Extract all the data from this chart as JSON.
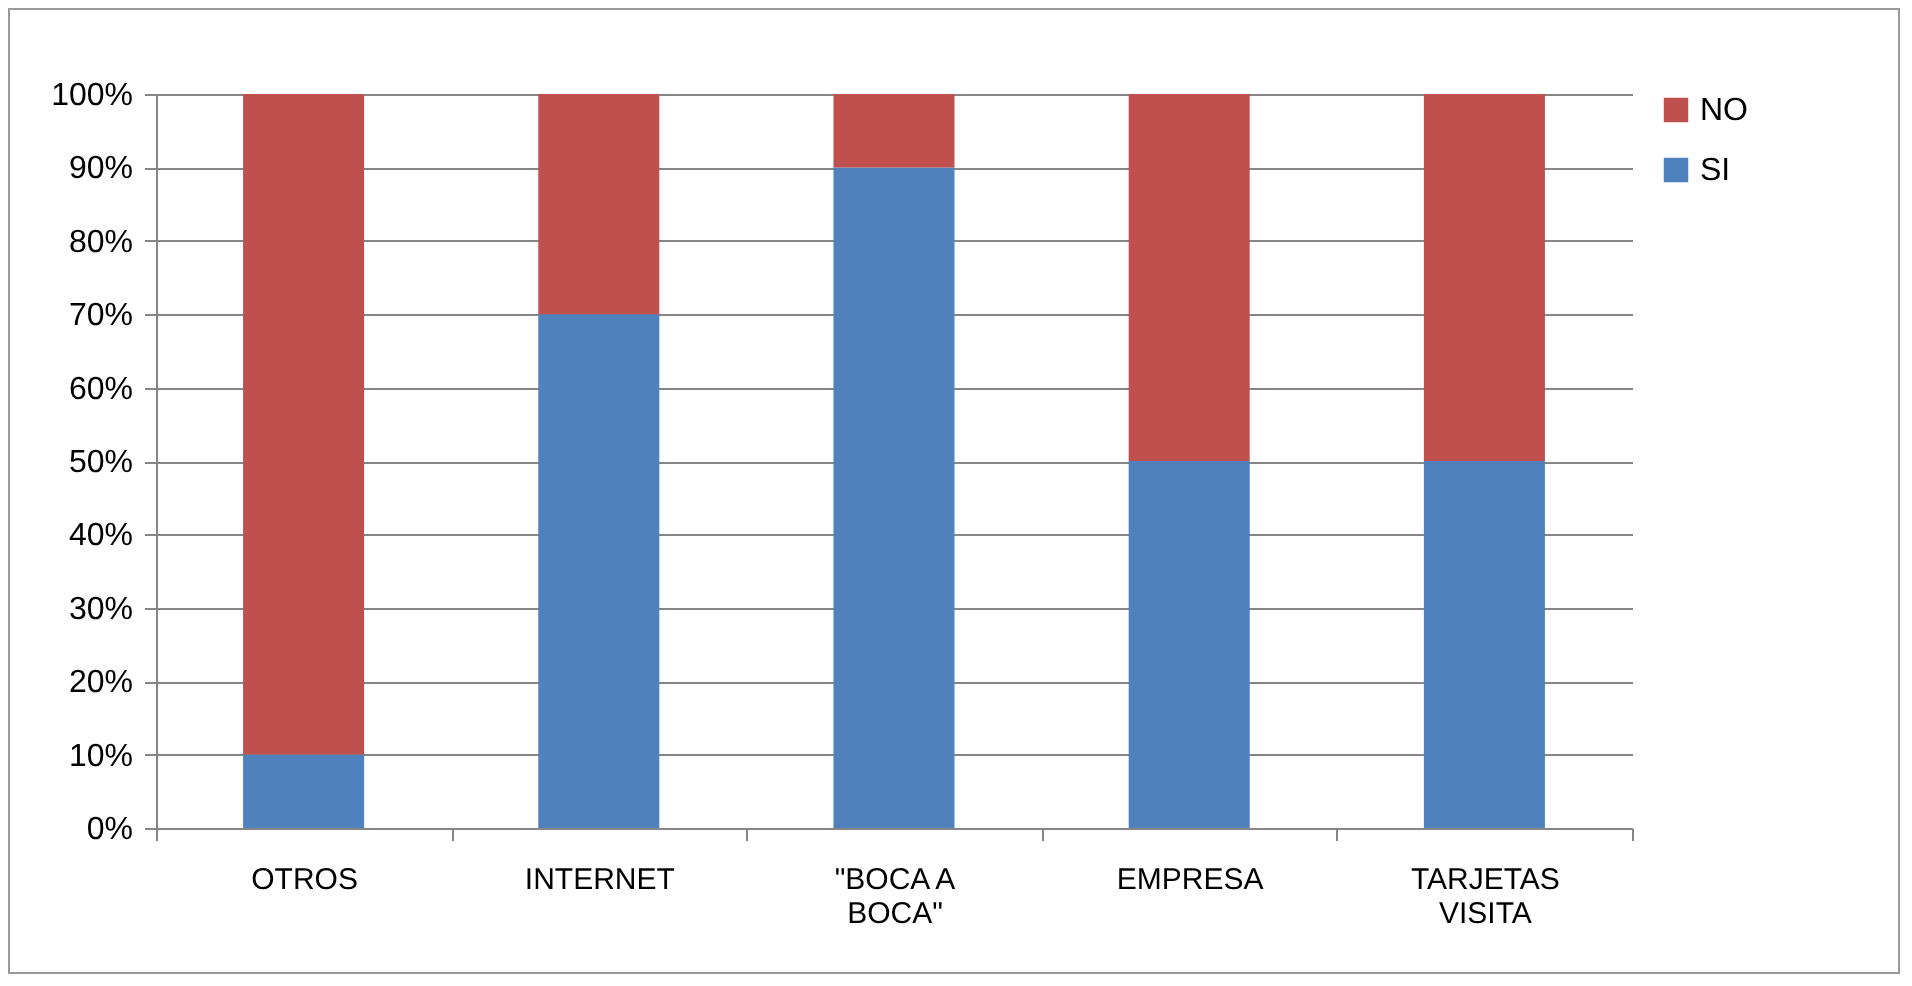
{
  "chart_data": {
    "type": "bar",
    "stacked": true,
    "categories": [
      "OTROS",
      "INTERNET",
      "\"BOCA A BOCA\"",
      "EMPRESA",
      "TARJETAS VISITA"
    ],
    "series": [
      {
        "name": "SI",
        "color": "#4f81bd",
        "values": [
          10,
          70,
          90,
          50,
          50
        ]
      },
      {
        "name": "NO",
        "color": "#c0504d",
        "values": [
          90,
          30,
          10,
          50,
          50
        ]
      }
    ],
    "ylim": [
      0,
      100
    ],
    "yticks": [
      {
        "value": 0,
        "label": "0%"
      },
      {
        "value": 10,
        "label": "10%"
      },
      {
        "value": 20,
        "label": "20%"
      },
      {
        "value": 30,
        "label": "30%"
      },
      {
        "value": 40,
        "label": "40%"
      },
      {
        "value": 50,
        "label": "50%"
      },
      {
        "value": 60,
        "label": "60%"
      },
      {
        "value": 70,
        "label": "70%"
      },
      {
        "value": 80,
        "label": "80%"
      },
      {
        "value": 90,
        "label": "90%"
      },
      {
        "value": 100,
        "label": "100%"
      }
    ],
    "grid": "y",
    "legend": "right"
  }
}
